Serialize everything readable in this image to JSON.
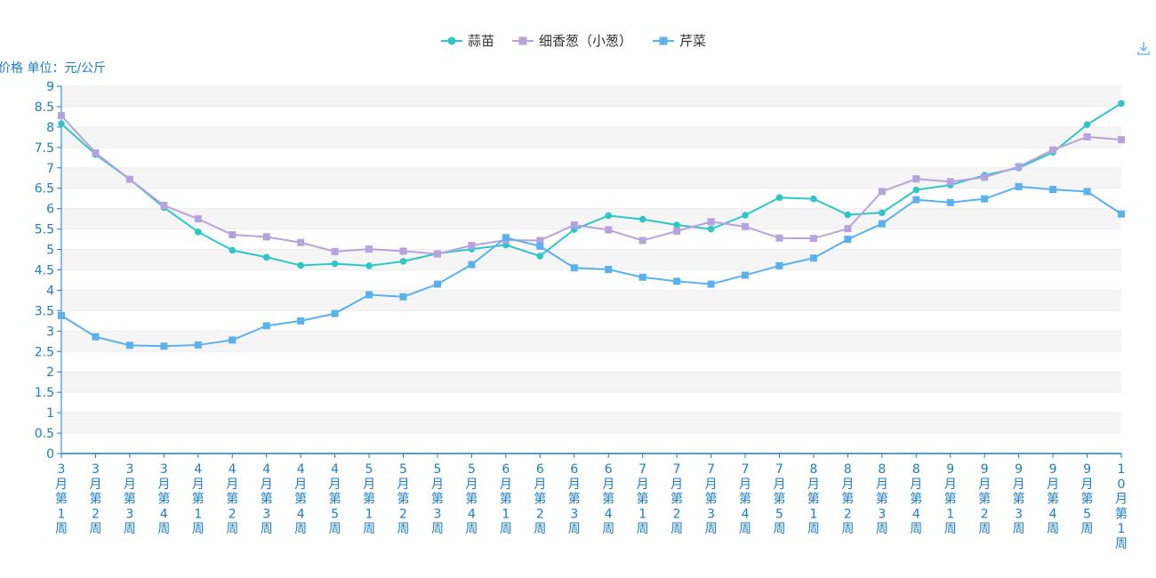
{
  "chart_data": {
    "type": "line",
    "ylabel": "价格 单位：元/公斤",
    "ylim": [
      0,
      9
    ],
    "ytick_step": 0.5,
    "grid": true,
    "legend_position": "top-center",
    "categories": [
      "3月第1周",
      "3月第2周",
      "3月第3周",
      "3月第4周",
      "4月第1周",
      "4月第2周",
      "4月第3周",
      "4月第4周",
      "4月第5周",
      "5月第1周",
      "5月第2周",
      "5月第3周",
      "5月第4周",
      "6月第1周",
      "6月第2周",
      "6月第3周",
      "6月第4周",
      "7月第1周",
      "7月第2周",
      "7月第3周",
      "7月第4周",
      "7月第5周",
      "8月第1周",
      "8月第2周",
      "8月第3周",
      "8月第4周",
      "9月第1周",
      "9月第2周",
      "9月第3周",
      "9月第4周",
      "9月第5周",
      "10月第1周"
    ],
    "series": [
      {
        "name": "蒜苗",
        "color": "#2ec7c9",
        "marker": "circle",
        "values": [
          8.08,
          7.33,
          6.72,
          6.03,
          5.43,
          4.98,
          4.81,
          4.61,
          4.65,
          4.6,
          4.71,
          4.9,
          5.01,
          5.11,
          4.84,
          5.49,
          5.83,
          5.74,
          5.6,
          5.5,
          5.84,
          6.27,
          6.24,
          5.85,
          5.9,
          6.46,
          6.58,
          6.82,
          7.0,
          7.38,
          8.06,
          8.58
        ]
      },
      {
        "name": "细香葱（小葱）",
        "color": "#b6a2de",
        "marker": "square",
        "values": [
          8.28,
          7.37,
          6.72,
          6.08,
          5.75,
          5.36,
          5.31,
          5.17,
          4.95,
          5.01,
          4.96,
          4.89,
          5.1,
          5.23,
          5.22,
          5.6,
          5.48,
          5.22,
          5.45,
          5.68,
          5.56,
          5.28,
          5.27,
          5.51,
          6.42,
          6.73,
          6.66,
          6.77,
          7.03,
          7.44,
          7.76,
          7.69
        ]
      },
      {
        "name": "芹菜",
        "color": "#5ab1ef",
        "marker": "square",
        "values": [
          3.38,
          2.86,
          2.65,
          2.63,
          2.66,
          2.78,
          3.13,
          3.25,
          3.43,
          3.89,
          3.84,
          4.15,
          4.63,
          5.29,
          5.08,
          4.55,
          4.51,
          4.32,
          4.22,
          4.15,
          4.37,
          4.6,
          4.79,
          5.25,
          5.63,
          6.22,
          6.15,
          6.24,
          6.54,
          6.47,
          6.42,
          5.87
        ]
      }
    ]
  },
  "toolbar": {
    "download_icon": "download-icon"
  }
}
